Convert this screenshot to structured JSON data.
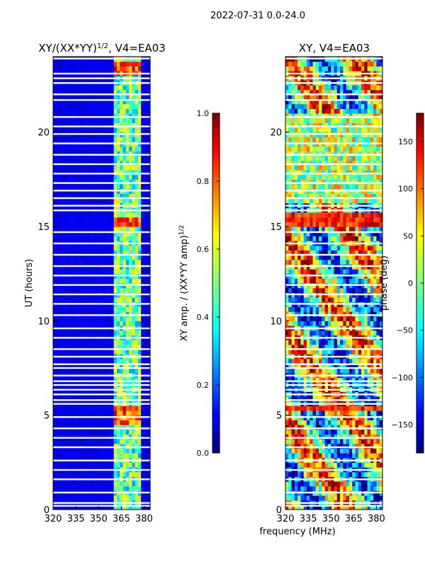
{
  "header": {
    "date_range": "2022-07-31 0.0-24.0"
  },
  "shared_xlabel": "frequency (MHz)",
  "chart_data": [
    {
      "type": "heatmap",
      "title": "XY/(XX*YY)",
      "title_exponent": "1/2",
      "title_suffix": ", V4=EA03",
      "xlabel": "",
      "ylabel": "UT (hours)",
      "xlim": [
        320,
        384
      ],
      "ylim": [
        0,
        24
      ],
      "x_ticks": [
        320,
        335,
        350,
        365,
        380
      ],
      "y_ticks": [
        0,
        5,
        10,
        15,
        20
      ],
      "colorbar": {
        "label": "XY amp. / (XX*YY amp)",
        "label_exponent": "1/2",
        "range": [
          0.0,
          1.0
        ],
        "ticks": [
          "0.0",
          "0.2",
          "0.4",
          "0.6",
          "0.8",
          "1.0"
        ],
        "tick_values": [
          0.0,
          0.2,
          0.4,
          0.6,
          0.8,
          1.0
        ],
        "colormap": "jet"
      },
      "description_values": {
        "background_level": 0.08,
        "active_band_mhz": [
          361,
          378
        ],
        "active_band_level": 0.45,
        "hot_periods_hours": [
          [
            4.6,
            5.4
          ],
          [
            14.9,
            15.6
          ],
          [
            22.9,
            23.7
          ]
        ]
      }
    },
    {
      "type": "heatmap",
      "title": "XY, V4=EA03",
      "xlabel": "frequency (MHz)",
      "ylabel": "phase (deg)",
      "xlim": [
        320,
        384
      ],
      "ylim": [
        0,
        24
      ],
      "x_ticks": [
        320,
        335,
        350,
        365,
        380
      ],
      "y_ticks": [
        0,
        5,
        10,
        15,
        20
      ],
      "colorbar": {
        "label": "phase (deg)",
        "range": [
          -180,
          180
        ],
        "ticks": [
          "150",
          "100",
          "50",
          "0",
          "−50",
          "−100",
          "−150"
        ],
        "tick_values": [
          150,
          100,
          50,
          0,
          -50,
          -100,
          -150
        ],
        "colormap": "jet"
      },
      "description_values": {
        "noisy_period_hours": [
          16.2,
          21.0
        ],
        "stable_bands_hours": [
          [
            5.2,
            5.6
          ],
          [
            14.9,
            15.8
          ]
        ]
      }
    }
  ],
  "gaps_hours": [
    0.2,
    0.35,
    0.9,
    1.6,
    2.1,
    2.6,
    3.3,
    3.8,
    4.3,
    4.9,
    5.6,
    5.8,
    6.1,
    6.35,
    6.6,
    6.8,
    7.1,
    7.5,
    7.7,
    8.1,
    8.5,
    9.1,
    9.6,
    10.3,
    10.9,
    11.4,
    11.9,
    12.4,
    12.9,
    13.5,
    14.1,
    14.7,
    15.85,
    16.1,
    16.5,
    16.9,
    17.3,
    17.8,
    18.3,
    18.8,
    19.4,
    19.9,
    20.3,
    20.8,
    21.7,
    22.0,
    22.6,
    22.85,
    23.1,
    23.9
  ],
  "colors": {
    "axis": "#000000",
    "gap": "#ffffff"
  }
}
